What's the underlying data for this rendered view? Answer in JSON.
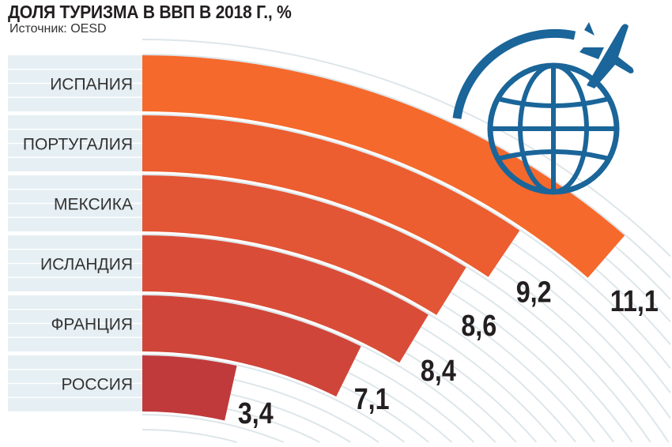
{
  "title": "ДОЛЯ ТУРИЗМА В ВВП В 2018 Г., %",
  "source": "Источник: OESD",
  "icon": "globe-with-airplane-icon",
  "colors": {
    "globe": "#1a6599",
    "band": "#e6eff3",
    "grid": "#dde6ea",
    "label": "#231f20"
  },
  "chart_data": {
    "type": "bar",
    "orientation": "radial",
    "title": "ДОЛЯ ТУРИЗМА В ВВП В 2018 Г., %",
    "categories": [
      "ИСПАНИЯ",
      "ПОРТУГАЛИЯ",
      "МЕКСИКА",
      "ИСЛАНДИЯ",
      "ФРАНЦИЯ",
      "РОССИЯ"
    ],
    "values": [
      11.1,
      9.2,
      8.6,
      8.4,
      7.1,
      3.4
    ],
    "value_labels": [
      "11,1",
      "9,2",
      "8,6",
      "8,4",
      "7,1",
      "3,4"
    ],
    "bar_colors": [
      "#f5692c",
      "#ec5d30",
      "#e25535",
      "#d94d38",
      "#cf4539",
      "#c03a3c"
    ],
    "grid": true,
    "legend": "none"
  }
}
